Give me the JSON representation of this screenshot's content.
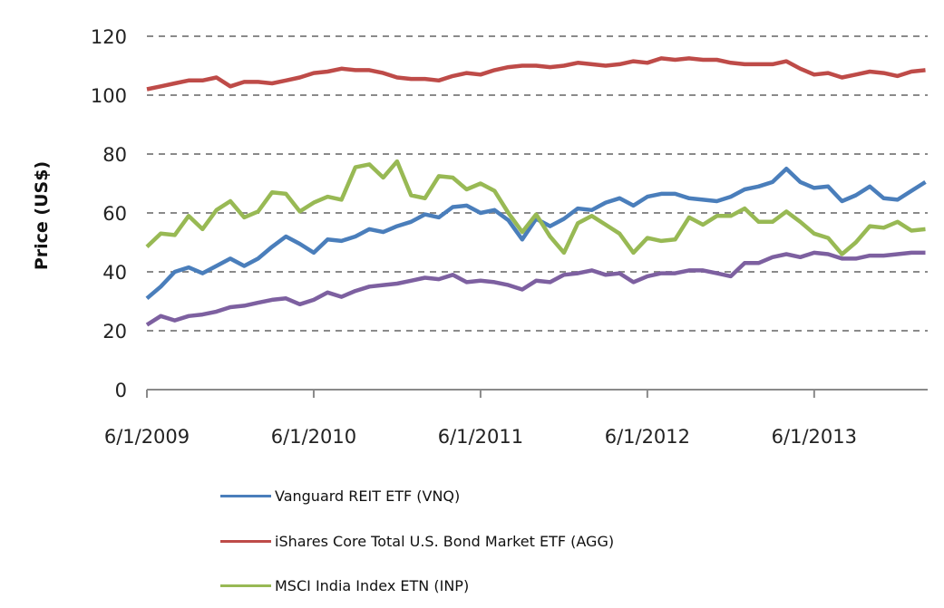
{
  "chart_data": {
    "type": "line",
    "title": "",
    "xlabel": "",
    "ylabel": "Price (US$)",
    "ylim": [
      0,
      120
    ],
    "yticks": [
      "0",
      "20",
      "40",
      "60",
      "80",
      "100",
      "120"
    ],
    "xticks": [
      "6/1/2009",
      "6/1/2010",
      "6/1/2011",
      "6/1/2012",
      "6/1/2013"
    ],
    "grid": "horizontal dashed",
    "legend_position": "bottom",
    "x": [
      "6/1/2009",
      "7/1/2009",
      "8/1/2009",
      "9/1/2009",
      "10/1/2009",
      "11/1/2009",
      "12/1/2009",
      "1/1/2010",
      "2/1/2010",
      "3/1/2010",
      "4/1/2010",
      "5/1/2010",
      "6/1/2010",
      "7/1/2010",
      "8/1/2010",
      "9/1/2010",
      "10/1/2010",
      "11/1/2010",
      "12/1/2010",
      "1/1/2011",
      "2/1/2011",
      "3/1/2011",
      "4/1/2011",
      "5/1/2011",
      "6/1/2011",
      "7/1/2011",
      "8/1/2011",
      "9/1/2011",
      "10/1/2011",
      "11/1/2011",
      "12/1/2011",
      "1/1/2012",
      "2/1/2012",
      "3/1/2012",
      "4/1/2012",
      "5/1/2012",
      "6/1/2012",
      "7/1/2012",
      "8/1/2012",
      "9/1/2012",
      "10/1/2012",
      "11/1/2012",
      "12/1/2012",
      "1/1/2013",
      "2/1/2013",
      "3/1/2013",
      "4/1/2013",
      "5/1/2013",
      "6/1/2013",
      "7/1/2013",
      "8/1/2013",
      "9/1/2013",
      "10/1/2013",
      "11/1/2013",
      "12/1/2013",
      "1/1/2014",
      "2/1/2014"
    ],
    "series": [
      {
        "name": "Vanguard REIT ETF (VNQ)",
        "color": "#4a7ebb",
        "values": [
          31,
          35,
          40,
          41.5,
          39.5,
          42,
          44.5,
          42,
          44.5,
          48.5,
          52,
          49.5,
          46.5,
          51,
          50.5,
          52,
          54.5,
          53.5,
          55.5,
          57,
          59.5,
          58.5,
          62,
          62.5,
          60,
          61,
          57.5,
          51,
          58,
          55.5,
          58,
          61.5,
          61,
          63.5,
          65,
          62.5,
          65.5,
          66.5,
          66.5,
          65,
          64.5,
          64,
          65.5,
          68,
          69,
          70.5,
          75,
          70.5,
          68.5,
          69,
          64,
          66,
          69,
          65,
          64.5,
          67.5,
          70.5
        ]
      },
      {
        "name": "iShares Core Total U.S. Bond Market ETF (AGG)",
        "color": "#be4b48",
        "values": [
          102,
          103,
          104,
          105,
          105,
          106,
          103,
          104.5,
          104.5,
          104,
          105,
          106,
          107.5,
          108,
          109,
          108.5,
          108.5,
          107.5,
          106,
          105.5,
          105.5,
          105,
          106.5,
          107.5,
          107,
          108.5,
          109.5,
          110,
          110,
          109.5,
          110,
          111,
          110.5,
          110,
          110.5,
          111.5,
          111,
          112.5,
          112,
          112.5,
          112,
          112,
          111,
          110.5,
          110.5,
          110.5,
          111.5,
          109,
          107,
          107.5,
          106,
          107,
          108,
          107.5,
          106.5,
          108,
          108.5
        ]
      },
      {
        "name": "MSCI India Index ETN (INP)",
        "color": "#98b954",
        "values": [
          48.5,
          53,
          52.5,
          59,
          54.5,
          61,
          64,
          58.5,
          60.5,
          67,
          66.5,
          60.5,
          63.5,
          65.5,
          64.5,
          75.5,
          76.5,
          72,
          77.5,
          66,
          65,
          72.5,
          72,
          68,
          70,
          67.5,
          60,
          53.5,
          59.5,
          52,
          46.5,
          56.5,
          59,
          56,
          53,
          46.5,
          51.5,
          50.5,
          51,
          58.5,
          56,
          59,
          59,
          61.5,
          57,
          57,
          60.5,
          57,
          53,
          51.5,
          46,
          50,
          55.5,
          55,
          57,
          54,
          54.5
        ]
      },
      {
        "color": "#7d60a0",
        "values": [
          22,
          25,
          23.5,
          25,
          25.5,
          26.5,
          28,
          28.5,
          29.5,
          30.5,
          31,
          29,
          30.5,
          33,
          31.5,
          33.5,
          35,
          35.5,
          36,
          37,
          38,
          37.5,
          39,
          36.5,
          37,
          36.5,
          35.5,
          34,
          37,
          36.5,
          39,
          39.5,
          40.5,
          39,
          39.5,
          36.5,
          38.5,
          39.5,
          39.5,
          40.5,
          40.5,
          39.5,
          38.5,
          43,
          43,
          45,
          46,
          45,
          46.5,
          46,
          44.5,
          44.5,
          45.5,
          45.5,
          46,
          46.5,
          46.5
        ]
      }
    ]
  }
}
